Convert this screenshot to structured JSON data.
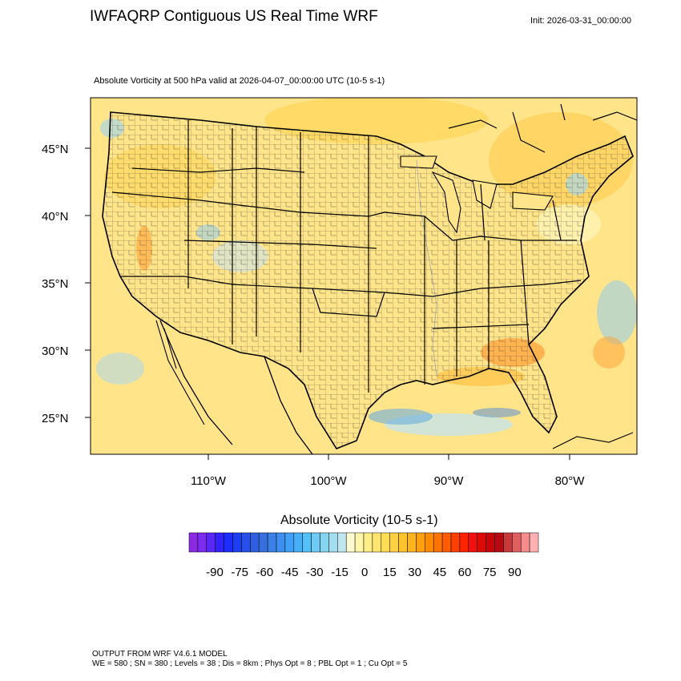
{
  "header": {
    "title": "IWFAQRP Contiguous US Real Time WRF",
    "init": "Init: 2026-03-31_00:00:00"
  },
  "plot": {
    "title": "Absolute Vorticity at 500 hPa valid at 2026-04-07_00:00:00 UTC   (10-5 s-1)"
  },
  "map": {
    "projection": "lambert-like",
    "background_color": "#ffe082",
    "lat_labels": [
      "45°N",
      "40°N",
      "35°N",
      "30°N",
      "25°N"
    ],
    "lon_labels": [
      "110°W",
      "100°W",
      "90°W",
      "80°W"
    ],
    "features": [
      "coastlines",
      "state-borders",
      "county-borders",
      "country-borders",
      "vorticity-shading"
    ]
  },
  "colorbar": {
    "title": "Absolute Vorticity  (10-5 s-1)",
    "tick_labels": [
      "-90",
      "-75",
      "-60",
      "-45",
      "-30",
      "-15",
      "0",
      "15",
      "30",
      "45",
      "60",
      "75",
      "90"
    ],
    "colors": [
      "#8a2be2",
      "#7b2cf0",
      "#5a28f5",
      "#3222ff",
      "#1e2dff",
      "#1c3ff5",
      "#2850e8",
      "#2f5fe0",
      "#3770dd",
      "#3a80e6",
      "#3c8ff0",
      "#40a0f5",
      "#45b0f8",
      "#55bff8",
      "#6ccaf5",
      "#85d4f0",
      "#a2ddf0",
      "#c0e6f0",
      "#fffbd0",
      "#fff5a8",
      "#ffee88",
      "#ffe56e",
      "#ffdc55",
      "#ffd040",
      "#ffc42e",
      "#ffb41e",
      "#ffa010",
      "#ff8c00",
      "#ff7400",
      "#ff5c00",
      "#ff4000",
      "#ff2400",
      "#f01010",
      "#dd0a0a",
      "#c8060a",
      "#b40a14",
      "#c83a3a",
      "#e06060",
      "#f48c8c",
      "#ffb0b0"
    ]
  },
  "footer": {
    "line1": "OUTPUT FROM WRF V4.6.1 MODEL",
    "line2": "WE = 580 ; SN = 380 ; Levels = 38 ; Dis = 8km ; Phys Opt = 8 ; PBL Opt = 1 ; Cu Opt = 5"
  }
}
